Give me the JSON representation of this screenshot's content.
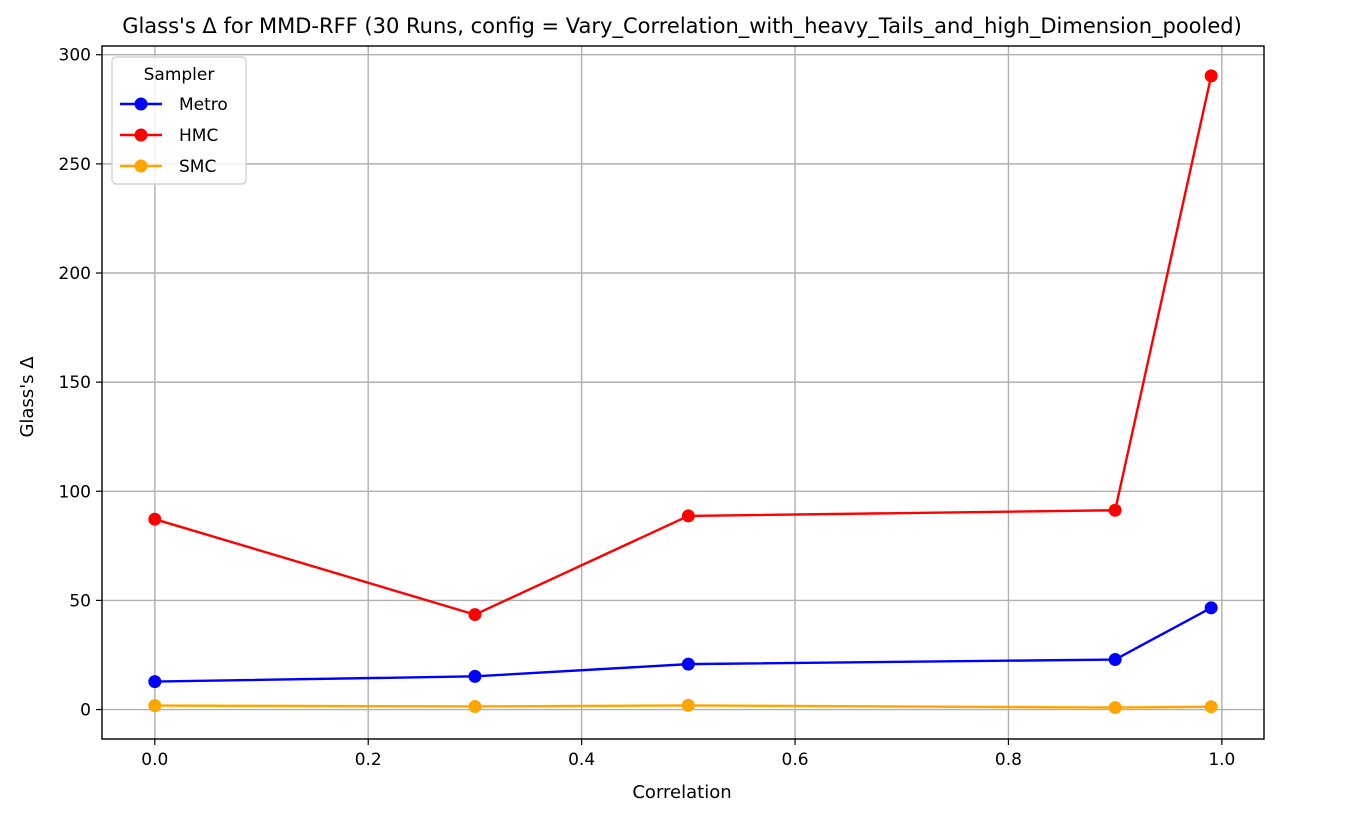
{
  "chart_data": {
    "type": "line",
    "title": "Glass's Δ for MMD-RFF (30 Runs, config = Vary_Correlation_with_heavy_Tails_and_high_Dimension_pooled)",
    "xlabel": "Correlation",
    "ylabel": "Glass's Δ",
    "x": [
      0.0,
      0.3,
      0.5,
      0.9,
      0.99
    ],
    "xlim": [
      -0.0495,
      1.0395
    ],
    "ylim": [
      -13.5,
      304
    ],
    "xticks": [
      0.0,
      0.2,
      0.4,
      0.6,
      0.8,
      1.0
    ],
    "xtick_labels": [
      "0.0",
      "0.2",
      "0.4",
      "0.6",
      "0.8",
      "1.0"
    ],
    "yticks": [
      0,
      50,
      100,
      150,
      200,
      250,
      300
    ],
    "ytick_labels": [
      "0",
      "50",
      "100",
      "150",
      "200",
      "250",
      "300"
    ],
    "grid": true,
    "legend": {
      "title": "Sampler",
      "placement": "upper-left"
    },
    "series": [
      {
        "name": "Metro",
        "color": "#0000ff",
        "values": [
          12.8,
          15.2,
          20.8,
          22.9,
          46.6
        ]
      },
      {
        "name": "HMC",
        "color": "#ff0000",
        "values": [
          87.2,
          43.5,
          88.7,
          91.3,
          290.3
        ]
      },
      {
        "name": "SMC",
        "color": "#ffa500",
        "values": [
          1.8,
          1.4,
          1.9,
          0.9,
          1.3
        ]
      }
    ]
  }
}
